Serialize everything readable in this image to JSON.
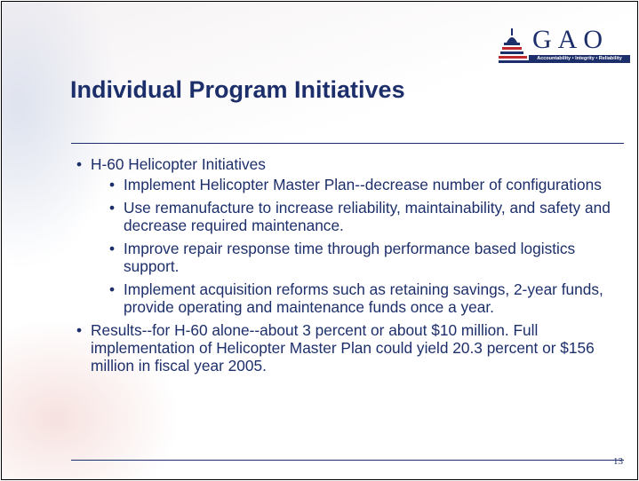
{
  "header": {
    "logo": "GAO",
    "tagline": "Accountability • Integrity • Reliability",
    "title": "Individual Program Initiatives"
  },
  "bullets": [
    {
      "text": "H-60 Helicopter Initiatives",
      "items": [
        "Implement Helicopter Master Plan--decrease number of configurations",
        "Use remanufacture to increase reliability, maintainability, and safety and decrease required maintenance.",
        "Improve repair response time through performance based logistics support.",
        "Implement acquisition reforms such as retaining savings, 2-year funds, provide operating and maintenance funds once a year."
      ]
    },
    {
      "text": "Results--for H-60 alone--about 3 percent or about $10 million. Full implementation of Helicopter Master Plan could yield 20.3 percent or $156 million in fiscal year 2005.",
      "items": []
    }
  ],
  "footer": {
    "page_number": "13"
  }
}
